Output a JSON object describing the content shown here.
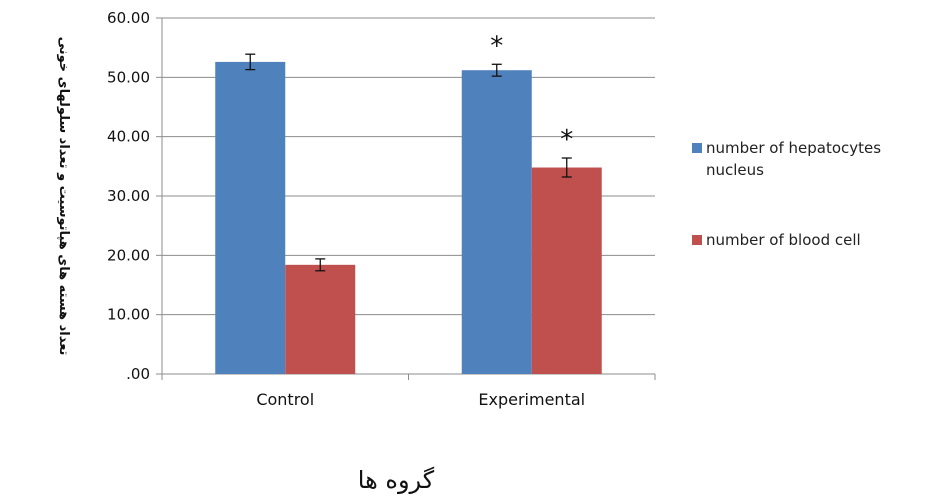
{
  "chart_data": {
    "type": "bar",
    "categories": [
      "Control",
      "Experimental"
    ],
    "series": [
      {
        "name": "number of hepatocytes nucleus",
        "legend_lines": [
          "number of hepatocytes",
          "nucleus"
        ],
        "color": "#4F81BD",
        "values": [
          52.6,
          51.2
        ],
        "errors": [
          1.3,
          1.0
        ],
        "markers": [
          "",
          "*"
        ]
      },
      {
        "name": "number of blood cell",
        "legend_lines": [
          "number of blood cell"
        ],
        "color": "#C0504D",
        "values": [
          18.4,
          34.8
        ],
        "errors": [
          1.0,
          1.6
        ],
        "markers": [
          "",
          "*"
        ]
      }
    ],
    "ylim": [
      0,
      60
    ],
    "yticks": [
      0,
      10,
      20,
      30,
      40,
      50,
      60
    ],
    "ytick_labels": [
      ".00",
      "10.00",
      "20.00",
      "30.00",
      "40.00",
      "50.00",
      "60.00"
    ],
    "ylabel": "تعداد هسته های هپاتوسیت و تعداد سلولهای خونی",
    "xlabel": "گروه ها",
    "grid": true,
    "legend_position": "right"
  }
}
